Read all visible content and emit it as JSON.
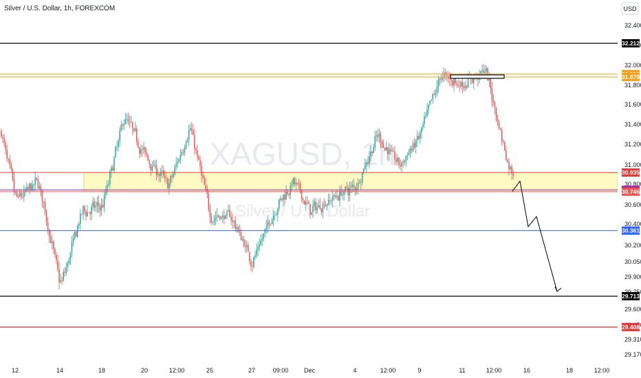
{
  "header": {
    "title": "Silver / U.S. Dollar, 1h, FOREXCOM",
    "currency_button": "USD"
  },
  "watermark": {
    "symbol": "XAGUSD, 1h",
    "name": "Silver / U.S. Dollar"
  },
  "colors": {
    "bull": "#26a69a",
    "bear": "#ef5350",
    "zone_fill": "#fff9c4",
    "level_black": "#000000",
    "level_orange": "#f7a01a",
    "level_red": "#e53935",
    "level_magenta": "#9c27b0",
    "level_blue": "#2962ff"
  },
  "chart_data": {
    "type": "candlestick",
    "title": "Silver / U.S. Dollar, 1h, FOREXCOM",
    "ylim": [
      29.1,
      32.6
    ],
    "grid": false,
    "y_ticks": [
      "32.400",
      "32.200",
      "32.000",
      "31.800",
      "31.600",
      "31.400",
      "31.200",
      "31.000",
      "30.800",
      "30.600",
      "30.400",
      "30.200",
      "30.050",
      "29.900",
      "29.750",
      "29.600",
      "29.450",
      "29.310",
      "29.170"
    ],
    "x_ticks": [
      "12",
      "14",
      "18",
      "20",
      "12:00",
      "25",
      "27",
      "09:00",
      "Dec",
      "4",
      "12:00",
      "9",
      "11",
      "12:00",
      "16",
      "18",
      "12:00"
    ],
    "levels": [
      {
        "label": "32.212",
        "value": 32.212,
        "color": "#000000",
        "box_bg": "#000000",
        "box_text": "#ffffff"
      },
      {
        "label": "31.908",
        "value": 31.908,
        "color": "#f7a01a",
        "box_bg": "#f7a01a",
        "box_text": "#ffffff"
      },
      {
        "label": "31.879",
        "value": 31.879,
        "color": "#f7a01a",
        "box_bg": "#f7a01a",
        "box_text": "#ffffff"
      },
      {
        "label": "30.935",
        "value": 30.935,
        "color": "#e53935",
        "box_bg": "#e53935",
        "box_text": "#ffffff"
      },
      {
        "label": "30.764",
        "value": 30.764,
        "color": "#9c27b0",
        "box_bg": "#9c27b0",
        "box_text": "#ffffff"
      },
      {
        "label": "30.746",
        "value": 30.746,
        "color": "#ef5350",
        "box_bg": "#ef5350",
        "box_text": "#ffffff"
      },
      {
        "label": "30.361",
        "value": 30.361,
        "color": "#2962ff",
        "box_bg": "#2962ff",
        "box_text": "#ffffff"
      },
      {
        "label": "29.713",
        "value": 29.713,
        "color": "#000000",
        "box_bg": "#000000",
        "box_text": "#ffffff"
      },
      {
        "label": "29.408",
        "value": 29.408,
        "color": "#e53935",
        "box_bg": "#e53935",
        "box_text": "#ffffff"
      }
    ],
    "zone": {
      "top": 30.935,
      "bottom": 30.746
    },
    "anchor_points": [
      {
        "date": "Nov 11",
        "price": 31.35
      },
      {
        "date": "Nov 12",
        "price": 30.65
      },
      {
        "date": "Nov 13",
        "price": 30.85
      },
      {
        "date": "Nov 14",
        "price": 29.8
      },
      {
        "date": "Nov 15",
        "price": 30.55
      },
      {
        "date": "Nov 18",
        "price": 30.6
      },
      {
        "date": "Nov 19",
        "price": 31.5
      },
      {
        "date": "Nov 20",
        "price": 31.1
      },
      {
        "date": "Nov 21",
        "price": 30.8
      },
      {
        "date": "Nov 22",
        "price": 31.4
      },
      {
        "date": "Nov 25",
        "price": 30.5
      },
      {
        "date": "Nov 26",
        "price": 30.5
      },
      {
        "date": "Nov 27",
        "price": 30.05
      },
      {
        "date": "Nov 28",
        "price": 30.6
      },
      {
        "date": "Nov 29",
        "price": 30.85
      },
      {
        "date": "Dec 2",
        "price": 30.55
      },
      {
        "date": "Dec 3",
        "price": 30.7
      },
      {
        "date": "Dec 4",
        "price": 30.8
      },
      {
        "date": "Dec 5",
        "price": 31.3
      },
      {
        "date": "Dec 6",
        "price": 31.0
      },
      {
        "date": "Dec 9",
        "price": 31.3
      },
      {
        "date": "Dec 10",
        "price": 31.9
      },
      {
        "date": "Dec 11",
        "price": 31.8
      },
      {
        "date": "Dec 12",
        "price": 31.95
      },
      {
        "date": "Dec 13",
        "price": 30.95
      }
    ],
    "projection": [
      {
        "date": "Dec 13",
        "price": 30.75
      },
      {
        "date": "Dec 13",
        "price": 30.85
      },
      {
        "date": "Dec 16",
        "price": 30.4
      },
      {
        "date": "Dec 16",
        "price": 30.5
      },
      {
        "date": "Dec 18",
        "price": 29.76
      }
    ]
  }
}
